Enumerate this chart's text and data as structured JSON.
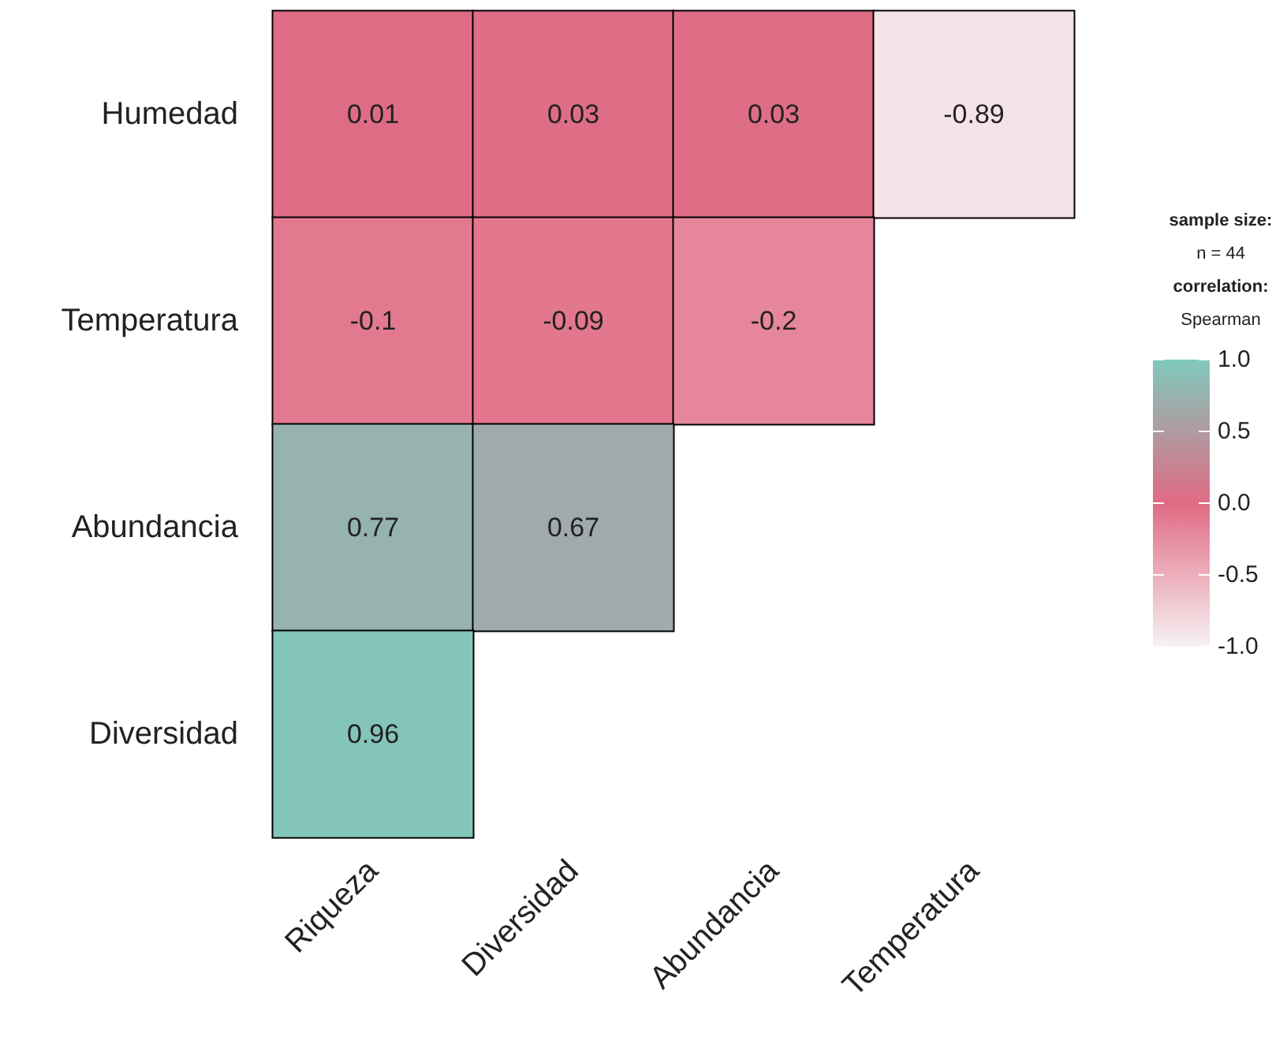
{
  "chart_data": {
    "type": "heatmap",
    "categories": [
      "Riqueza",
      "Diversidad",
      "Abundancia",
      "Temperatura"
    ],
    "y_categories": [
      "Humedad",
      "Temperatura",
      "Abundancia",
      "Diversidad"
    ],
    "cells": [
      [
        0.01,
        0.03,
        0.03,
        -0.89
      ],
      [
        -0.1,
        -0.09,
        -0.2,
        null
      ],
      [
        0.77,
        0.67,
        null,
        null
      ],
      [
        0.96,
        null,
        null,
        null
      ]
    ],
    "data_labels": true,
    "clim": [
      -1,
      1
    ],
    "cticks": [
      {
        "value": 1,
        "label": "1.0"
      },
      {
        "value": 0.5,
        "label": "0.5"
      },
      {
        "value": 0,
        "label": "0.0"
      },
      {
        "value": -0.5,
        "label": "-0.5"
      },
      {
        "value": -1,
        "label": "-1.0"
      }
    ],
    "annotations": [
      "sample size:",
      "n = 44",
      "correlation:",
      "Spearman"
    ]
  }
}
